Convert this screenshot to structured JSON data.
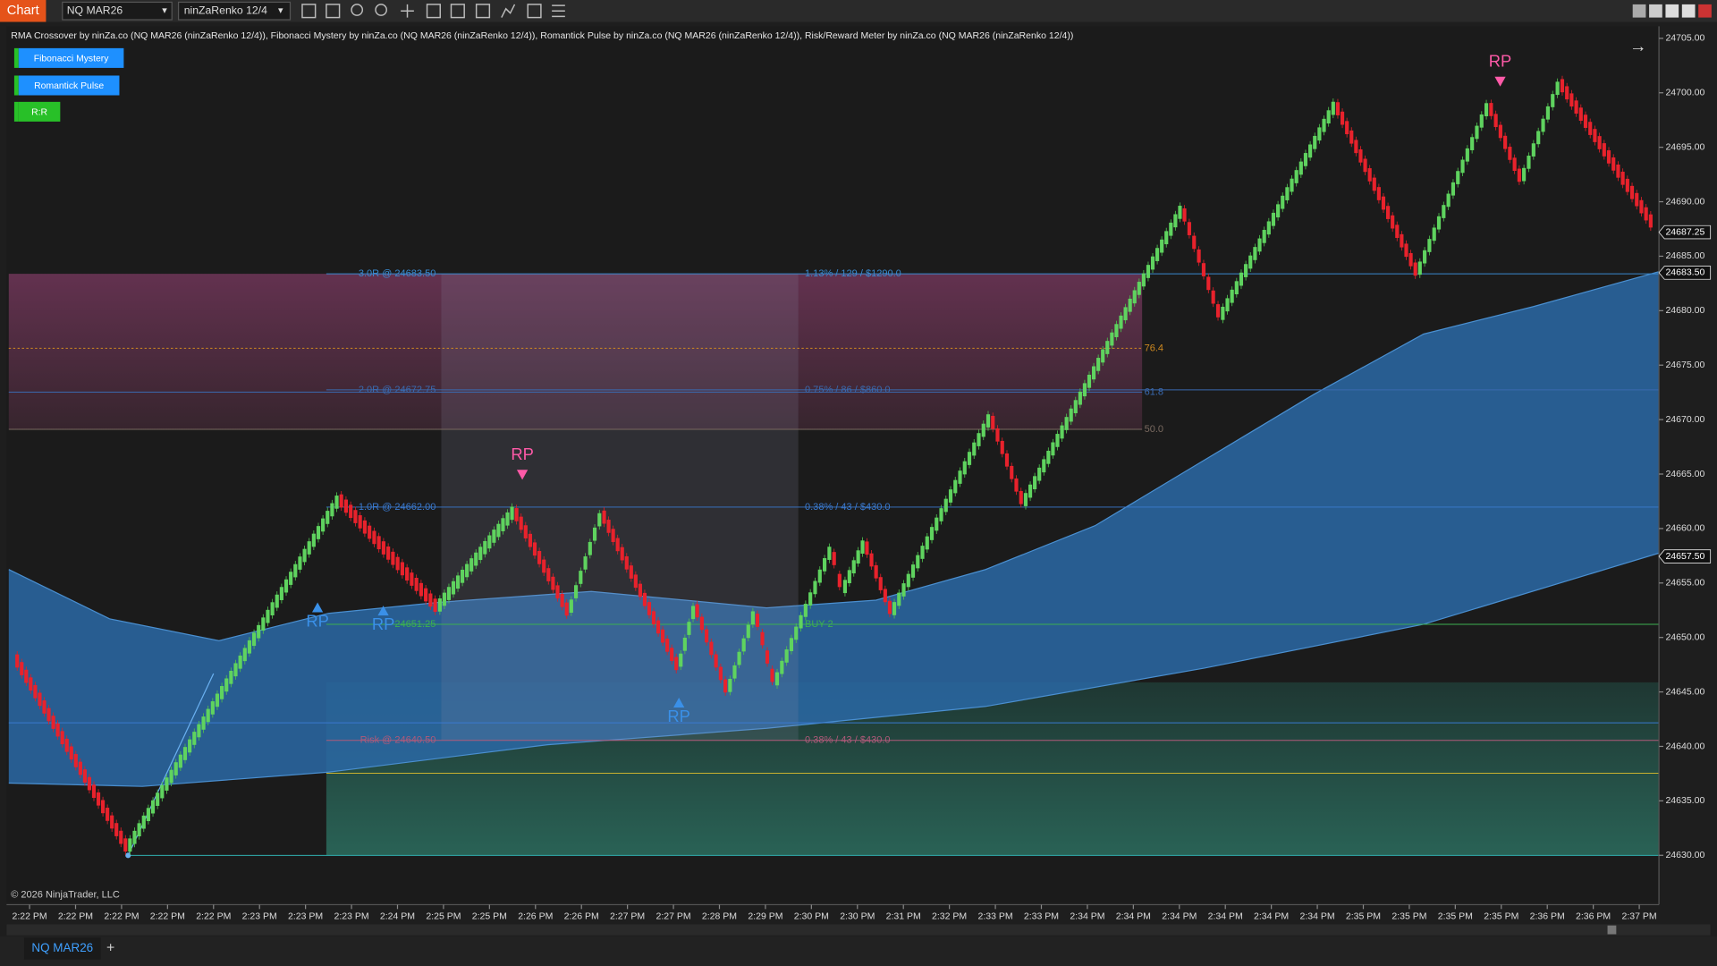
{
  "toolbar": {
    "title": "Chart",
    "instrument": "NQ MAR26",
    "bar_type": "ninZaRenko 12/4"
  },
  "indicator_label": "RMA Crossover by ninZa.co (NQ MAR26 (ninZaRenko 12/4)), Fibonacci Mystery by ninZa.co (NQ MAR26 (ninZaRenko 12/4)), Romantick Pulse by ninZa.co (NQ MAR26 (ninZaRenko 12/4)), Risk/Reward Meter by ninZa.co (NQ MAR26 (ninZaRenko 12/4))",
  "buttons": [
    "Fibonacci Mystery",
    "Romantick Pulse",
    "R:R"
  ],
  "price_axis": {
    "labels": [
      "24705.00",
      "24700.00",
      "24695.00",
      "24690.00",
      "24685.00",
      "24680.00",
      "24675.00",
      "24670.00",
      "24665.00",
      "24660.00",
      "24655.00",
      "24650.00",
      "24645.00",
      "24640.00",
      "24635.00",
      "24630.00"
    ],
    "markers": [
      "24687.25",
      "24683.50",
      "24657.50"
    ]
  },
  "time_axis": [
    "2:22 PM",
    "2:22 PM",
    "2:22 PM",
    "2:22 PM",
    "2:22 PM",
    "2:23 PM",
    "2:23 PM",
    "2:23 PM",
    "2:24 PM",
    "2:25 PM",
    "2:25 PM",
    "2:26 PM",
    "2:26 PM",
    "2:27 PM",
    "2:27 PM",
    "2:28 PM",
    "2:29 PM",
    "2:30 PM",
    "2:30 PM",
    "2:31 PM",
    "2:32 PM",
    "2:33 PM",
    "2:33 PM",
    "2:34 PM",
    "2:34 PM",
    "2:34 PM",
    "2:34 PM",
    "2:34 PM",
    "2:34 PM",
    "2:35 PM",
    "2:35 PM",
    "2:35 PM",
    "2:35 PM",
    "2:36 PM",
    "2:36 PM",
    "2:37 PM"
  ],
  "risk_reward": {
    "levels": [
      {
        "left": "3.0R @ 24683.50",
        "right": "1.13%  /  129  /  $1290.0"
      },
      {
        "left": "2.0R @ 24672.75",
        "right": "0.75%  /  86  /  $860.0"
      },
      {
        "left": "1.0R @ 24662.00",
        "right": "0.38%  /  43  /  $430.0"
      },
      {
        "left": "24651.25",
        "right": "BUY 2"
      },
      {
        "left": "Risk @ 24640.50",
        "right": "0.38%  /  43  /  $430.0"
      }
    ]
  },
  "fib_levels": [
    "76.4",
    "61.8",
    "50.0"
  ],
  "signals": [
    "RP",
    "RP",
    "RP",
    "RP",
    "RP"
  ],
  "copyright": "© 2026 NinjaTrader, LLC",
  "tabs": {
    "active": "NQ MAR26",
    "add": "+"
  }
}
